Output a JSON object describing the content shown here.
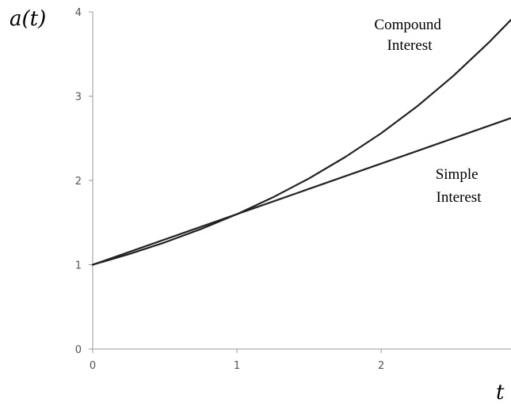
{
  "chart_data": {
    "type": "line",
    "xlabel": "t",
    "ylabel": "a(t)",
    "xlim": [
      0,
      2.9
    ],
    "ylim": [
      0,
      4
    ],
    "x_ticks": [
      0,
      1,
      2
    ],
    "y_ticks": [
      0,
      1,
      2,
      3,
      4
    ],
    "grid": false,
    "legend": "none",
    "series": [
      {
        "id": "compound",
        "label_lines": [
          "Compound",
          "Interest"
        ],
        "x": [
          0,
          0.25,
          0.5,
          0.75,
          1,
          1.25,
          1.5,
          1.75,
          2,
          2.25,
          2.5,
          2.75,
          2.9
        ],
        "y": [
          1,
          1.125,
          1.265,
          1.423,
          1.6,
          1.8,
          2.024,
          2.277,
          2.56,
          2.88,
          3.24,
          3.643,
          3.906
        ]
      },
      {
        "id": "simple",
        "label_lines": [
          "Simple",
          "Interest"
        ],
        "x": [
          0,
          1,
          2,
          2.9
        ],
        "y": [
          1,
          1.6,
          2.2,
          2.74
        ]
      }
    ],
    "colors": {
      "line": "#222222",
      "axis": "#999999",
      "tick_text": "#555555"
    }
  }
}
